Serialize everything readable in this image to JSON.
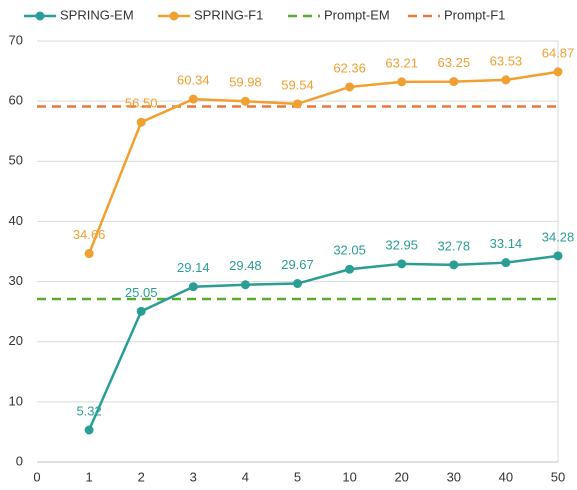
{
  "chart_data": {
    "type": "line",
    "categories": [
      "0",
      "1",
      "2",
      "3",
      "4",
      "5",
      "10",
      "20",
      "30",
      "40",
      "50"
    ],
    "series": [
      {
        "name": "SPRING-EM",
        "color": "#2a9d94",
        "values": [
          null,
          5.32,
          25.05,
          29.14,
          29.48,
          29.67,
          32.05,
          32.95,
          32.78,
          33.14,
          34.28
        ]
      },
      {
        "name": "SPRING-F1",
        "color": "#f0a030",
        "values": [
          null,
          34.66,
          56.5,
          60.34,
          59.98,
          59.54,
          62.36,
          63.21,
          63.25,
          63.53,
          64.87
        ],
        "value_labels": [
          null,
          "34.66",
          "56.50",
          "60.34",
          "59.98",
          "59.54",
          "62.36",
          "63.21",
          "63.25",
          "63.53",
          "64.87"
        ]
      }
    ],
    "reference_lines": [
      {
        "name": "Prompt-EM",
        "color": "#5aaa32",
        "value": 27.1
      },
      {
        "name": "Prompt-F1",
        "color": "#e8783a",
        "value": 59.1
      }
    ],
    "ylim": [
      0,
      70
    ],
    "yticks": [
      0,
      10,
      20,
      30,
      40,
      50,
      60,
      70
    ],
    "grid": true
  }
}
